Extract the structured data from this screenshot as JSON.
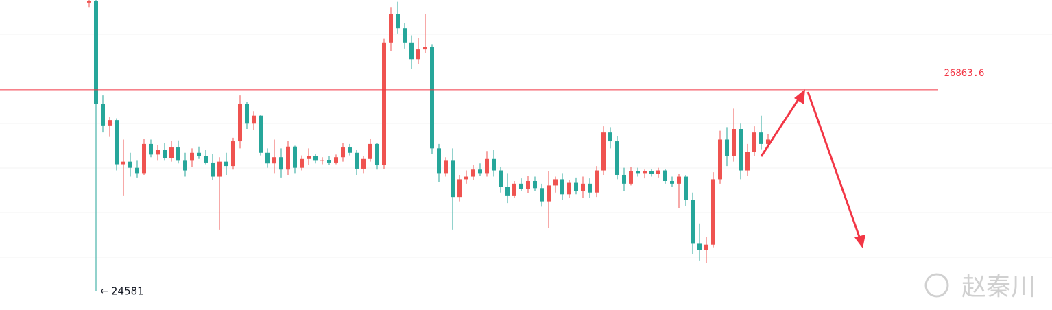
{
  "chart_data": {
    "type": "candlestick",
    "up_color": "#ef5350",
    "down_color": "#26a69a",
    "ylim": [
      24370,
      27880
    ],
    "price_line": {
      "value": 26863.6,
      "label": "26863.6",
      "color": "#f23645"
    },
    "watermark": "赵秦川",
    "candles": [
      {
        "o": 27850,
        "h": 27880,
        "l": 27800,
        "c": 27870
      },
      {
        "o": 27870,
        "h": 27880,
        "l": 24581,
        "c": 26700
      },
      {
        "o": 26700,
        "h": 26800,
        "l": 26380,
        "c": 26460
      },
      {
        "o": 26460,
        "h": 26560,
        "l": 26330,
        "c": 26520
      },
      {
        "o": 26520,
        "h": 26540,
        "l": 25950,
        "c": 26020
      },
      {
        "o": 26020,
        "h": 26300,
        "l": 25660,
        "c": 26050
      },
      {
        "o": 26050,
        "h": 26150,
        "l": 25880,
        "c": 25980
      },
      {
        "o": 25980,
        "h": 26060,
        "l": 25870,
        "c": 25920
      },
      {
        "o": 25920,
        "h": 26310,
        "l": 25900,
        "c": 26250
      },
      {
        "o": 26250,
        "h": 26300,
        "l": 26100,
        "c": 26130
      },
      {
        "o": 26130,
        "h": 26240,
        "l": 26060,
        "c": 26180
      },
      {
        "o": 26180,
        "h": 26260,
        "l": 26060,
        "c": 26090
      },
      {
        "o": 26090,
        "h": 26280,
        "l": 26050,
        "c": 26210
      },
      {
        "o": 26210,
        "h": 26290,
        "l": 26030,
        "c": 26060
      },
      {
        "o": 26060,
        "h": 26150,
        "l": 25880,
        "c": 25950
      },
      {
        "o": 26060,
        "h": 26200,
        "l": 25990,
        "c": 26150
      },
      {
        "o": 26150,
        "h": 26220,
        "l": 26080,
        "c": 26110
      },
      {
        "o": 26110,
        "h": 26180,
        "l": 26020,
        "c": 26040
      },
      {
        "o": 26040,
        "h": 26140,
        "l": 25840,
        "c": 25880
      },
      {
        "o": 25880,
        "h": 26100,
        "l": 25280,
        "c": 26050
      },
      {
        "o": 26050,
        "h": 26150,
        "l": 25900,
        "c": 26000
      },
      {
        "o": 26000,
        "h": 26320,
        "l": 25960,
        "c": 26280
      },
      {
        "o": 26280,
        "h": 26800,
        "l": 26200,
        "c": 26700
      },
      {
        "o": 26700,
        "h": 26730,
        "l": 26420,
        "c": 26480
      },
      {
        "o": 26480,
        "h": 26620,
        "l": 26410,
        "c": 26570
      },
      {
        "o": 26570,
        "h": 26580,
        "l": 26120,
        "c": 26150
      },
      {
        "o": 26150,
        "h": 26200,
        "l": 25980,
        "c": 26030
      },
      {
        "o": 26030,
        "h": 26300,
        "l": 25920,
        "c": 26100
      },
      {
        "o": 26100,
        "h": 26200,
        "l": 25870,
        "c": 25960
      },
      {
        "o": 25960,
        "h": 26280,
        "l": 25900,
        "c": 26220
      },
      {
        "o": 26220,
        "h": 26230,
        "l": 25920,
        "c": 25980
      },
      {
        "o": 25980,
        "h": 26120,
        "l": 25950,
        "c": 26080
      },
      {
        "o": 26080,
        "h": 26200,
        "l": 26010,
        "c": 26110
      },
      {
        "o": 26110,
        "h": 26140,
        "l": 26030,
        "c": 26060
      },
      {
        "o": 26060,
        "h": 26100,
        "l": 26020,
        "c": 26070
      },
      {
        "o": 26070,
        "h": 26110,
        "l": 26010,
        "c": 26040
      },
      {
        "o": 26040,
        "h": 26130,
        "l": 26020,
        "c": 26100
      },
      {
        "o": 26100,
        "h": 26260,
        "l": 26050,
        "c": 26210
      },
      {
        "o": 26210,
        "h": 26250,
        "l": 26120,
        "c": 26150
      },
      {
        "o": 26150,
        "h": 26180,
        "l": 25900,
        "c": 25970
      },
      {
        "o": 25970,
        "h": 26110,
        "l": 25920,
        "c": 26080
      },
      {
        "o": 26080,
        "h": 26310,
        "l": 26050,
        "c": 26250
      },
      {
        "o": 26250,
        "h": 26260,
        "l": 25960,
        "c": 26010
      },
      {
        "o": 26010,
        "h": 27440,
        "l": 25970,
        "c": 27400
      },
      {
        "o": 27400,
        "h": 27800,
        "l": 27300,
        "c": 27720
      },
      {
        "o": 27720,
        "h": 27860,
        "l": 27500,
        "c": 27560
      },
      {
        "o": 27560,
        "h": 27620,
        "l": 27330,
        "c": 27400
      },
      {
        "o": 27400,
        "h": 27480,
        "l": 27100,
        "c": 27210
      },
      {
        "o": 27210,
        "h": 27450,
        "l": 27150,
        "c": 27320
      },
      {
        "o": 27320,
        "h": 27720,
        "l": 27280,
        "c": 27350
      },
      {
        "o": 27350,
        "h": 27380,
        "l": 26140,
        "c": 26200
      },
      {
        "o": 26200,
        "h": 26250,
        "l": 25820,
        "c": 25920
      },
      {
        "o": 25920,
        "h": 26100,
        "l": 25880,
        "c": 26060
      },
      {
        "o": 26060,
        "h": 26200,
        "l": 25280,
        "c": 25650
      },
      {
        "o": 25650,
        "h": 25900,
        "l": 25600,
        "c": 25850
      },
      {
        "o": 25850,
        "h": 25950,
        "l": 25800,
        "c": 25880
      },
      {
        "o": 25880,
        "h": 26010,
        "l": 25840,
        "c": 25960
      },
      {
        "o": 25960,
        "h": 26030,
        "l": 25890,
        "c": 25920
      },
      {
        "o": 25920,
        "h": 26170,
        "l": 25880,
        "c": 26080
      },
      {
        "o": 26080,
        "h": 26180,
        "l": 25880,
        "c": 25950
      },
      {
        "o": 25950,
        "h": 25990,
        "l": 25700,
        "c": 25760
      },
      {
        "o": 25760,
        "h": 25920,
        "l": 25580,
        "c": 25660
      },
      {
        "o": 25660,
        "h": 25830,
        "l": 25640,
        "c": 25800
      },
      {
        "o": 25800,
        "h": 25860,
        "l": 25720,
        "c": 25740
      },
      {
        "o": 25740,
        "h": 25890,
        "l": 25690,
        "c": 25830
      },
      {
        "o": 25830,
        "h": 25880,
        "l": 25720,
        "c": 25750
      },
      {
        "o": 25750,
        "h": 25800,
        "l": 25540,
        "c": 25600
      },
      {
        "o": 25600,
        "h": 25940,
        "l": 25300,
        "c": 25780
      },
      {
        "o": 25780,
        "h": 25880,
        "l": 25700,
        "c": 25850
      },
      {
        "o": 25850,
        "h": 25920,
        "l": 25620,
        "c": 25680
      },
      {
        "o": 25680,
        "h": 25840,
        "l": 25640,
        "c": 25810
      },
      {
        "o": 25810,
        "h": 25870,
        "l": 25680,
        "c": 25720
      },
      {
        "o": 25720,
        "h": 25880,
        "l": 25640,
        "c": 25800
      },
      {
        "o": 25800,
        "h": 25860,
        "l": 25640,
        "c": 25700
      },
      {
        "o": 25700,
        "h": 26000,
        "l": 25650,
        "c": 25950
      },
      {
        "o": 25950,
        "h": 26450,
        "l": 25900,
        "c": 26380
      },
      {
        "o": 26380,
        "h": 26440,
        "l": 26200,
        "c": 26280
      },
      {
        "o": 26280,
        "h": 26340,
        "l": 25850,
        "c": 25900
      },
      {
        "o": 25900,
        "h": 25980,
        "l": 25720,
        "c": 25800
      },
      {
        "o": 25800,
        "h": 25990,
        "l": 25780,
        "c": 25940
      },
      {
        "o": 25940,
        "h": 25980,
        "l": 25880,
        "c": 25920
      },
      {
        "o": 25920,
        "h": 25960,
        "l": 25860,
        "c": 25940
      },
      {
        "o": 25940,
        "h": 25970,
        "l": 25880,
        "c": 25910
      },
      {
        "o": 25910,
        "h": 25980,
        "l": 25870,
        "c": 25950
      },
      {
        "o": 25950,
        "h": 25970,
        "l": 25800,
        "c": 25830
      },
      {
        "o": 25830,
        "h": 25880,
        "l": 25760,
        "c": 25800
      },
      {
        "o": 25800,
        "h": 25910,
        "l": 25520,
        "c": 25880
      },
      {
        "o": 25880,
        "h": 25900,
        "l": 25550,
        "c": 25620
      },
      {
        "o": 25620,
        "h": 25700,
        "l": 25000,
        "c": 25120
      },
      {
        "o": 25120,
        "h": 25350,
        "l": 24930,
        "c": 25050
      },
      {
        "o": 25050,
        "h": 25200,
        "l": 24900,
        "c": 25110
      },
      {
        "o": 25110,
        "h": 25930,
        "l": 25080,
        "c": 25850
      },
      {
        "o": 25850,
        "h": 26400,
        "l": 25800,
        "c": 26300
      },
      {
        "o": 26300,
        "h": 26440,
        "l": 26000,
        "c": 26110
      },
      {
        "o": 26110,
        "h": 26650,
        "l": 26050,
        "c": 26420
      },
      {
        "o": 26420,
        "h": 26480,
        "l": 25850,
        "c": 25950
      },
      {
        "o": 25950,
        "h": 26250,
        "l": 25890,
        "c": 26160
      },
      {
        "o": 26160,
        "h": 26450,
        "l": 26110,
        "c": 26380
      },
      {
        "o": 26380,
        "h": 26570,
        "l": 26190,
        "c": 26250
      },
      {
        "o": 26250,
        "h": 26360,
        "l": 26200,
        "c": 26300
      }
    ]
  }
}
